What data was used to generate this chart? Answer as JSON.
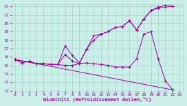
{
  "xlabel": "Windchill (Refroidissement éolien,°C)",
  "bg_color": "#cceee8",
  "grid_color": "#aad8d2",
  "line_color": "#990099",
  "xlim": [
    -0.5,
    23.5
  ],
  "ylim": [
    12,
    22.3
  ],
  "xticks": [
    0,
    1,
    2,
    3,
    4,
    5,
    6,
    7,
    8,
    9,
    10,
    11,
    12,
    13,
    14,
    15,
    16,
    17,
    18,
    19,
    20,
    21,
    22,
    23
  ],
  "yticks": [
    12,
    13,
    14,
    15,
    16,
    17,
    18,
    19,
    20,
    21,
    22
  ],
  "series1_x": [
    0,
    1,
    2,
    3,
    4,
    5,
    6,
    7,
    8,
    9,
    10,
    11,
    12,
    13,
    14,
    15,
    16,
    17,
    18,
    19,
    20,
    21,
    22
  ],
  "series1_y": [
    15.7,
    15.3,
    15.5,
    15.2,
    15.2,
    15.1,
    15.1,
    17.3,
    16.2,
    15.3,
    16.9,
    18.5,
    18.7,
    19.0,
    19.5,
    19.6,
    20.3,
    19.2,
    20.5,
    21.5,
    21.8,
    21.9,
    22.0
  ],
  "series2_x": [
    0,
    1,
    2,
    3,
    4,
    5,
    6,
    7,
    8,
    9,
    10,
    11,
    12,
    13,
    14,
    15,
    16,
    17,
    18,
    19,
    20,
    21,
    22
  ],
  "series2_y": [
    15.7,
    15.3,
    15.5,
    15.2,
    15.2,
    15.1,
    15.1,
    16.3,
    15.5,
    15.2,
    16.9,
    18.0,
    18.7,
    19.0,
    19.5,
    19.6,
    20.3,
    19.2,
    20.5,
    21.5,
    21.9,
    22.1,
    22.0
  ],
  "series3_x": [
    0,
    22
  ],
  "series3_y": [
    15.7,
    12.1
  ],
  "series4_x": [
    0,
    3,
    4,
    5,
    6,
    7,
    8,
    9,
    10,
    11,
    12,
    13,
    14,
    15,
    16,
    17,
    18,
    19,
    20,
    21,
    22
  ],
  "series4_y": [
    15.7,
    15.2,
    15.2,
    15.1,
    15.1,
    15.0,
    15.0,
    15.2,
    15.3,
    15.2,
    15.1,
    15.0,
    14.8,
    14.8,
    14.8,
    15.8,
    18.7,
    19.0,
    15.8,
    13.2,
    12.1
  ]
}
